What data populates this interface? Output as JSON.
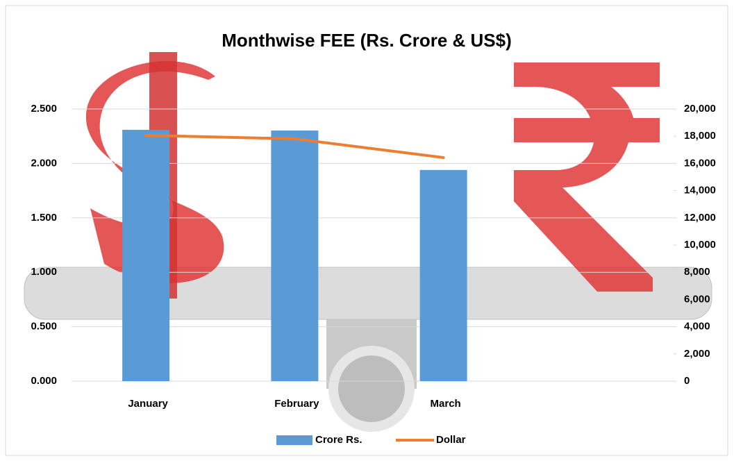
{
  "chart_data": {
    "type": "bar-line",
    "title": "Monthwise FEE (Rs. Crore & US$)",
    "categories": [
      "January",
      "February",
      "March",
      null
    ],
    "series": [
      {
        "name": "Crore Rs.",
        "type": "bar",
        "color": "#5b9bd5",
        "axis": "y",
        "values": [
          2.309,
          2.302,
          1.94,
          null
        ]
      },
      {
        "name": "Dollar",
        "type": "line",
        "color": "#ed7d31",
        "axis": "y2",
        "values": [
          18060,
          17810,
          16430,
          null
        ]
      }
    ],
    "ylim": [
      0,
      2.5
    ],
    "yticks": [
      {
        "value": 0,
        "label": "0.000"
      },
      {
        "value": 0.5,
        "label": "0.500"
      },
      {
        "value": 1,
        "label": "1.000"
      },
      {
        "value": 1.5,
        "label": "1.500"
      },
      {
        "value": 2,
        "label": "2.000"
      },
      {
        "value": 2.5,
        "label": "2.500"
      }
    ],
    "y2lim": [
      0,
      20000
    ],
    "y2ticks": [
      0,
      {
        "value": 2000,
        "label": "2,000"
      },
      {
        "value": 4000,
        "label": "4,000"
      },
      {
        "value": 6000,
        "label": "6,000"
      },
      {
        "value": 8000,
        "label": "8,000"
      },
      {
        "value": 10000,
        "label": "10,000"
      },
      {
        "value": 12000,
        "label": "12,000"
      },
      {
        "value": 14000,
        "label": "14,000"
      },
      {
        "value": 16000,
        "label": "16,000"
      },
      {
        "value": 18000,
        "label": "18,000"
      },
      {
        "value": 20000,
        "label": "20,000"
      }
    ],
    "grid": true,
    "legend": "bottom"
  }
}
